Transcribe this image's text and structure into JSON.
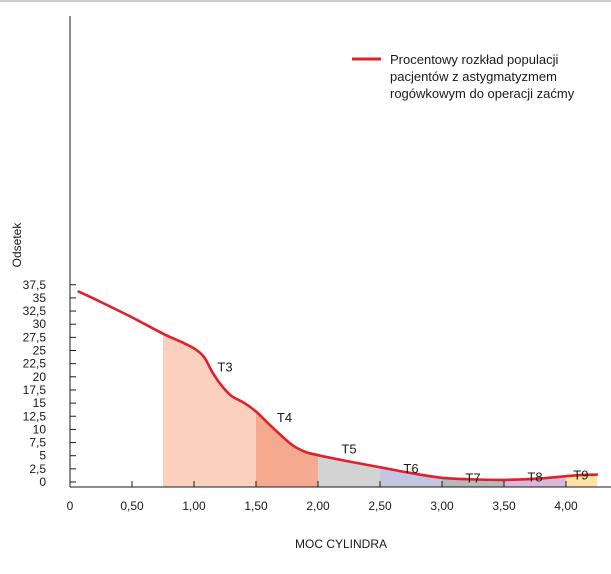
{
  "chart_data": {
    "type": "area",
    "title": "",
    "xlabel": "MOC CYLINDRA",
    "ylabel": "Odsetek",
    "xlim": [
      0,
      4.25
    ],
    "ylim": [
      0,
      37.5
    ],
    "x_ticks": [
      {
        "value": 0,
        "label": "0"
      },
      {
        "value": 0.5,
        "label": "0,50"
      },
      {
        "value": 1.0,
        "label": "1,00"
      },
      {
        "value": 1.5,
        "label": "1,50"
      },
      {
        "value": 2.0,
        "label": "2,00"
      },
      {
        "value": 2.5,
        "label": "2,50"
      },
      {
        "value": 3.0,
        "label": "3,00"
      },
      {
        "value": 3.5,
        "label": "3,50"
      },
      {
        "value": 4.0,
        "label": "4,00"
      }
    ],
    "y_ticks": [
      {
        "value": 0,
        "label": "0"
      },
      {
        "value": 2.5,
        "label": "2,5"
      },
      {
        "value": 5,
        "label": "5"
      },
      {
        "value": 7.5,
        "label": "7,5"
      },
      {
        "value": 10,
        "label": "10"
      },
      {
        "value": 12.5,
        "label": "12,5"
      },
      {
        "value": 15,
        "label": "15"
      },
      {
        "value": 17.5,
        "label": "17,5"
      },
      {
        "value": 20,
        "label": "20"
      },
      {
        "value": 22.5,
        "label": "22,5"
      },
      {
        "value": 25,
        "label": "25"
      },
      {
        "value": 27.5,
        "label": "27,5"
      },
      {
        "value": 30,
        "label": "30"
      },
      {
        "value": 32.5,
        "label": "32,5"
      },
      {
        "value": 35,
        "label": "35"
      },
      {
        "value": 37.5,
        "label": "37,5"
      }
    ],
    "series": [
      {
        "name": "Procentowy rozkład populacji pacjentów z astygmatyzmem rogówkowym do operacji zaćmy",
        "color": "#e0202a",
        "x": [
          0.07,
          0.25,
          0.5,
          0.75,
          0.9,
          1.0,
          1.08,
          1.15,
          1.22,
          1.3,
          1.4,
          1.5,
          1.6,
          1.7,
          1.8,
          1.9,
          2.0,
          2.1,
          2.25,
          2.5,
          2.75,
          3.0,
          3.25,
          3.5,
          3.75,
          4.0,
          4.1,
          4.25
        ],
        "y": [
          36.2,
          34.2,
          31.3,
          28.2,
          26.6,
          25.4,
          23.8,
          20.8,
          18.4,
          16.4,
          15.1,
          13.4,
          11.1,
          8.9,
          6.9,
          5.7,
          5.1,
          4.6,
          3.9,
          2.8,
          1.7,
          0.8,
          0.5,
          0.4,
          0.6,
          1.1,
          1.3,
          1.4
        ]
      }
    ],
    "regions": [
      {
        "label": "T3",
        "x0": 0.75,
        "x1": 1.5,
        "color": "#fbd0bf",
        "label_x": 1.25,
        "label_y": 21.8
      },
      {
        "label": "T4",
        "x0": 1.5,
        "x1": 2.0,
        "color": "#f5aa90",
        "label_x": 1.73,
        "label_y": 12.2
      },
      {
        "label": "T5",
        "x0": 2.0,
        "x1": 2.5,
        "color": "#d3d3d3",
        "label_x": 2.25,
        "label_y": 6.2
      },
      {
        "label": "T6",
        "x0": 2.5,
        "x1": 3.0,
        "color": "#c5c5e1",
        "label_x": 2.75,
        "label_y": 2.5
      },
      {
        "label": "T7",
        "x0": 3.0,
        "x1": 3.5,
        "color": "#b9b9b9",
        "label_x": 3.25,
        "label_y": 0.7
      },
      {
        "label": "T8",
        "x0": 3.5,
        "x1": 4.0,
        "color": "#d9b8d9",
        "label_x": 3.75,
        "label_y": 0.9
      },
      {
        "label": "T9",
        "x0": 4.0,
        "x1": 4.25,
        "color": "#fde3a6",
        "label_x": 4.12,
        "label_y": 1.2
      }
    ],
    "legend_position": "top-right",
    "grid": false
  }
}
